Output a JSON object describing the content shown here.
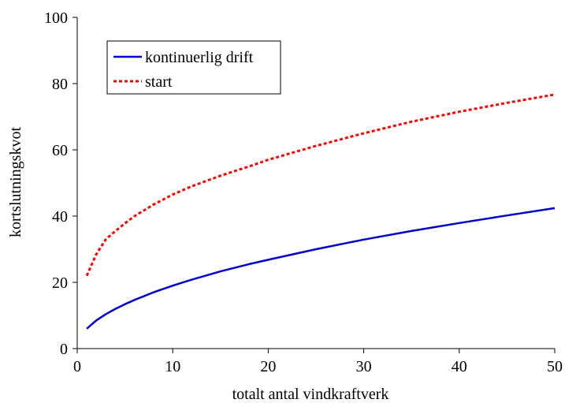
{
  "chart_data": {
    "type": "line",
    "title": "",
    "xlabel": "totalt antal vindkraftverk",
    "ylabel": "kortslutningskvot",
    "xlim": [
      0,
      50
    ],
    "ylim": [
      0,
      100
    ],
    "x_ticks": [
      0,
      10,
      20,
      30,
      40,
      50
    ],
    "y_ticks": [
      0,
      20,
      40,
      60,
      80,
      100
    ],
    "grid": false,
    "legend_position": "top-left",
    "x": [
      1,
      2,
      3,
      4,
      5,
      6,
      8,
      10,
      12,
      15,
      18,
      20,
      25,
      30,
      35,
      40,
      45,
      50
    ],
    "series": [
      {
        "name": "kontinuerlig drift",
        "color": "#0000cc",
        "line_style": "solid",
        "values": [
          6.0,
          8.5,
          10.4,
          12.0,
          13.4,
          14.7,
          17.0,
          19.0,
          20.8,
          23.3,
          25.5,
          26.8,
          30.0,
          32.9,
          35.5,
          37.9,
          40.2,
          42.4
        ]
      },
      {
        "name": "start",
        "color": "#ff0000",
        "line_style": "dotted",
        "values": [
          22.0,
          28.5,
          33.0,
          35.5,
          37.8,
          40.0,
          43.5,
          46.5,
          49.0,
          52.2,
          55.0,
          57.0,
          61.2,
          65.0,
          68.5,
          71.5,
          74.2,
          76.7
        ]
      }
    ]
  }
}
